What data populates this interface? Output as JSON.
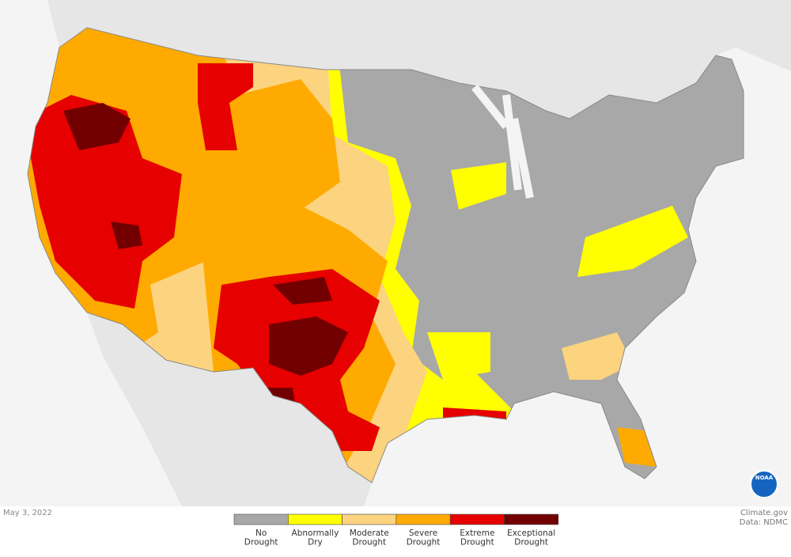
{
  "date": "May 3, 2022",
  "credits": [
    "Climate.gov",
    "Data: NDMC"
  ],
  "logo": "NOAA",
  "legend": [
    {
      "label": [
        "No",
        "Drought"
      ],
      "color": "#a8a8a8"
    },
    {
      "label": [
        "Abnormally",
        "Dry"
      ],
      "color": "#ffff00"
    },
    {
      "label": [
        "Moderate",
        "Drought"
      ],
      "color": "#fcd37f"
    },
    {
      "label": [
        "Severe",
        "Drought"
      ],
      "color": "#ffaa00"
    },
    {
      "label": [
        "Extreme",
        "Drought"
      ],
      "color": "#e60000"
    },
    {
      "label": [
        "Exceptional",
        "Drought"
      ],
      "color": "#730000"
    }
  ]
}
